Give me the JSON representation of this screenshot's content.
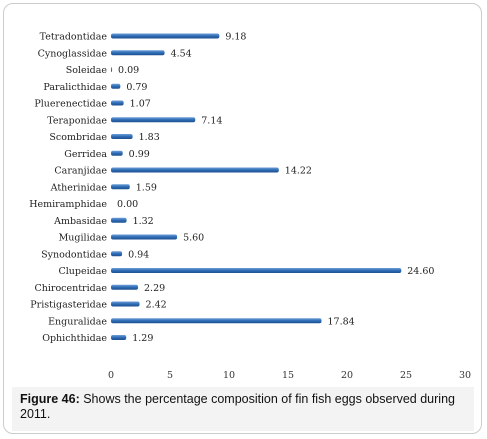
{
  "chart_data": {
    "type": "bar",
    "orientation": "horizontal",
    "categories": [
      "Tetradontidae",
      "Cynoglassidae",
      "Soleidae",
      "Paralicthidae",
      "Pluerenectidae",
      "Teraponidae",
      "Scombridae",
      "Gerridea",
      "Caranjidae",
      "Atherinidae",
      "Hemiramphidae",
      "Ambasidae",
      "Mugilidae",
      "Synodontidae",
      "Clupeidae",
      "Chirocentridae",
      "Pristigasteridae",
      "Enguralidae",
      "Ophichthidae"
    ],
    "values": [
      9.18,
      4.54,
      0.09,
      0.79,
      1.07,
      7.14,
      1.83,
      0.99,
      14.22,
      1.59,
      0.0,
      1.32,
      5.6,
      0.94,
      24.6,
      2.29,
      2.42,
      17.84,
      1.29
    ],
    "value_labels": [
      "9.18",
      "4.54",
      "0.09",
      "0.79",
      "1.07",
      "7.14",
      "1.83",
      "0.99",
      "14.22",
      "1.59",
      "0.00",
      "1.32",
      "5.60",
      "0.94",
      "24.60",
      "2.29",
      "2.42",
      "17.84",
      "1.29"
    ],
    "xticks": [
      "0",
      "5",
      "10",
      "15",
      "20",
      "25",
      "30"
    ],
    "xlim": [
      0,
      30
    ],
    "grid": false,
    "bar_color": "#2e6cb5",
    "bar_color_dark": "#1d4f8e"
  },
  "caption": {
    "prefix": "Figure 46:",
    "text": " Shows the percentage composition of fin fish eggs observed during 2011."
  }
}
